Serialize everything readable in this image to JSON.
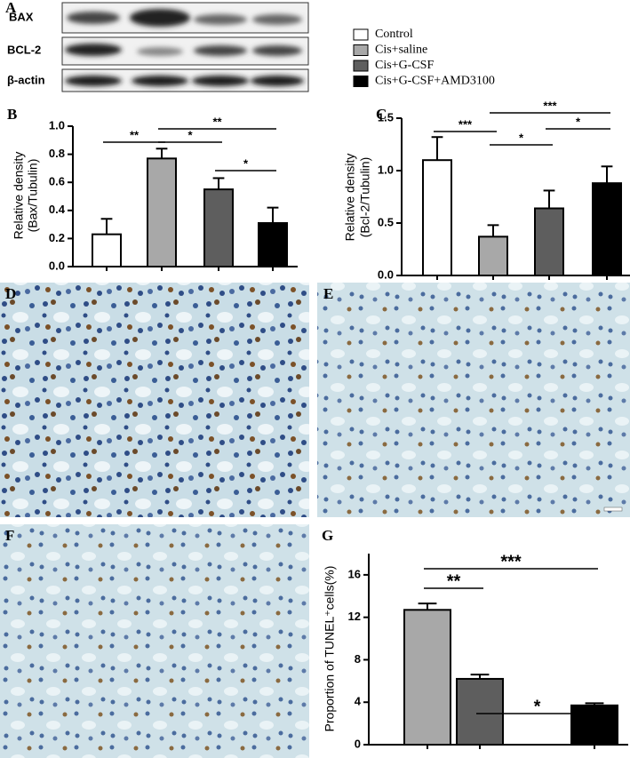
{
  "panel_labels": {
    "a": "A",
    "b": "B",
    "c": "C",
    "d": "D",
    "e": "E",
    "f": "F",
    "g": "G"
  },
  "blot": {
    "labels": [
      "BAX",
      "BCL-2",
      "β-actin"
    ]
  },
  "legend": {
    "entries": [
      {
        "name": "Control",
        "color": "#ffffff"
      },
      {
        "name": "Cis+saline",
        "color": "#a8a8a8"
      },
      {
        "name": "Cis+G-CSF",
        "color": "#5e5e5e"
      },
      {
        "name": "Cis+G-CSF+AMD3100",
        "color": "#000000"
      }
    ]
  },
  "chart_data": [
    {
      "type": "bar",
      "y_label": [
        "Relative density",
        "(Bax/Tubulin)"
      ],
      "values": [
        0.23,
        0.77,
        0.55,
        0.31
      ],
      "errors": [
        0.11,
        0.07,
        0.08,
        0.11
      ],
      "colors": [
        "#ffffff",
        "#a8a8a8",
        "#5e5e5e",
        "#000000"
      ],
      "ylim": [
        0,
        1
      ],
      "yticks": [
        {
          "value": 0,
          "label": "0.0"
        },
        0.2,
        0.4,
        0.6,
        0.8,
        {
          "value": 1,
          "label": "1.0"
        }
      ],
      "annotations": [
        {
          "text": "**",
          "between": [
            0,
            1
          ]
        },
        {
          "text": "*",
          "between": [
            1,
            2
          ]
        },
        {
          "text": "**",
          "between": [
            1,
            3
          ]
        },
        {
          "text": "*",
          "between": [
            2,
            3
          ]
        }
      ]
    },
    {
      "type": "bar",
      "y_label": [
        "Relative density",
        "(Bcl-2/Tubulin)"
      ],
      "values": [
        1.1,
        0.37,
        0.64,
        0.88
      ],
      "errors": [
        0.22,
        0.11,
        0.17,
        0.16
      ],
      "colors": [
        "#ffffff",
        "#a8a8a8",
        "#5e5e5e",
        "#000000"
      ],
      "ylim": [
        0,
        1.5
      ],
      "yticks": [
        {
          "value": 0,
          "label": "0.0"
        },
        0.5,
        {
          "value": 1,
          "label": "1.0"
        },
        1.5
      ],
      "annotations": [
        {
          "text": "***",
          "between": [
            0,
            1
          ]
        },
        {
          "text": "***",
          "between": [
            1,
            3
          ]
        },
        {
          "text": "*",
          "between": [
            1,
            2
          ]
        },
        {
          "text": "*",
          "between": [
            2,
            3
          ]
        }
      ]
    },
    {
      "type": "bar",
      "y_label": [
        "Proportion of TUNEL⁺cells(%)"
      ],
      "values": [
        12.7,
        6.2,
        3.7
      ],
      "errors": [
        0.6,
        0.4,
        0.2
      ],
      "colors": [
        "#a8a8a8",
        "#5e5e5e",
        "#000000"
      ],
      "ylim": [
        0,
        18
      ],
      "yticks": [
        0,
        4,
        8,
        12,
        16
      ],
      "annotations": [
        {
          "text": "***",
          "between": [
            0,
            2
          ]
        },
        {
          "text": "**",
          "between": [
            0,
            1
          ]
        },
        {
          "text": "*",
          "between": [
            1,
            2
          ]
        }
      ]
    }
  ]
}
